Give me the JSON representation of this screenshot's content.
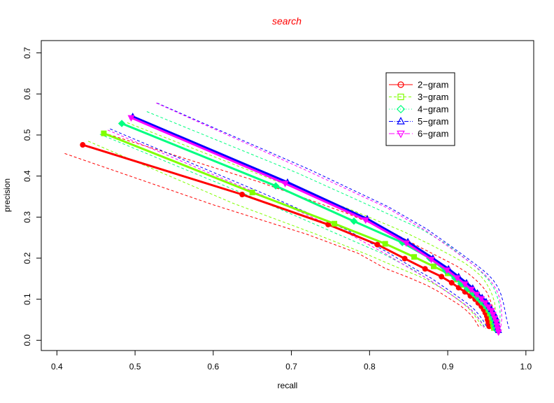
{
  "chart_data": {
    "type": "line",
    "title": "search",
    "title_color": "#ff0000",
    "xlabel": "recall",
    "ylabel": "precision",
    "xlim": [
      0.38,
      1.01
    ],
    "ylim": [
      -0.025,
      0.73
    ],
    "xticks": [
      "0.4",
      "0.5",
      "0.6",
      "0.7",
      "0.8",
      "0.9",
      "1.0"
    ],
    "yticks": [
      "0.0",
      "0.1",
      "0.2",
      "0.3",
      "0.4",
      "0.5",
      "0.6",
      "0.7"
    ],
    "legend_position": "top-right",
    "series": [
      {
        "name": "2−gram",
        "color": "#ff0000",
        "legend_marker": "circle",
        "points": [
          [
            0.433,
            0.476
          ],
          [
            0.637,
            0.355
          ],
          [
            0.747,
            0.282
          ],
          [
            0.81,
            0.233
          ],
          [
            0.845,
            0.199
          ],
          [
            0.871,
            0.174
          ],
          [
            0.892,
            0.155
          ],
          [
            0.905,
            0.14
          ],
          [
            0.914,
            0.128
          ],
          [
            0.922,
            0.118
          ],
          [
            0.929,
            0.108
          ],
          [
            0.935,
            0.1
          ],
          [
            0.939,
            0.091
          ],
          [
            0.943,
            0.083
          ],
          [
            0.946,
            0.075
          ],
          [
            0.948,
            0.067
          ],
          [
            0.95,
            0.059
          ],
          [
            0.951,
            0.05
          ],
          [
            0.952,
            0.042
          ],
          [
            0.953,
            0.034
          ]
        ],
        "upper": [
          [
            0.46,
            0.505
          ],
          [
            0.66,
            0.385
          ],
          [
            0.77,
            0.31
          ],
          [
            0.83,
            0.262
          ],
          [
            0.865,
            0.226
          ],
          [
            0.892,
            0.2
          ],
          [
            0.912,
            0.18
          ],
          [
            0.926,
            0.163
          ],
          [
            0.936,
            0.147
          ],
          [
            0.944,
            0.132
          ],
          [
            0.95,
            0.117
          ],
          [
            0.954,
            0.1
          ],
          [
            0.957,
            0.083
          ],
          [
            0.958,
            0.066
          ],
          [
            0.958,
            0.05
          ],
          [
            0.957,
            0.035
          ]
        ],
        "lower": [
          [
            0.41,
            0.455
          ],
          [
            0.6,
            0.33
          ],
          [
            0.72,
            0.258
          ],
          [
            0.785,
            0.212
          ],
          [
            0.82,
            0.175
          ],
          [
            0.85,
            0.153
          ],
          [
            0.872,
            0.135
          ],
          [
            0.886,
            0.121
          ],
          [
            0.897,
            0.108
          ],
          [
            0.906,
            0.097
          ],
          [
            0.915,
            0.086
          ],
          [
            0.923,
            0.074
          ],
          [
            0.93,
            0.061
          ],
          [
            0.935,
            0.048
          ],
          [
            0.939,
            0.035
          ],
          [
            0.941,
            0.03
          ]
        ]
      },
      {
        "name": "3−gram",
        "color": "#80ff00",
        "legend_marker": "square",
        "points": [
          [
            0.46,
            0.504
          ],
          [
            0.65,
            0.36
          ],
          [
            0.755,
            0.284
          ],
          [
            0.82,
            0.235
          ],
          [
            0.857,
            0.203
          ],
          [
            0.882,
            0.18
          ],
          [
            0.9,
            0.163
          ],
          [
            0.912,
            0.148
          ],
          [
            0.921,
            0.135
          ],
          [
            0.929,
            0.123
          ],
          [
            0.935,
            0.112
          ],
          [
            0.94,
            0.102
          ],
          [
            0.945,
            0.092
          ],
          [
            0.949,
            0.083
          ],
          [
            0.952,
            0.074
          ],
          [
            0.954,
            0.065
          ],
          [
            0.956,
            0.056
          ],
          [
            0.957,
            0.047
          ],
          [
            0.958,
            0.038
          ],
          [
            0.959,
            0.03
          ]
        ],
        "upper": [
          [
            0.49,
            0.53
          ],
          [
            0.675,
            0.392
          ],
          [
            0.78,
            0.315
          ],
          [
            0.843,
            0.265
          ],
          [
            0.879,
            0.232
          ],
          [
            0.903,
            0.208
          ],
          [
            0.92,
            0.19
          ],
          [
            0.932,
            0.174
          ],
          [
            0.941,
            0.159
          ],
          [
            0.948,
            0.143
          ],
          [
            0.953,
            0.127
          ],
          [
            0.957,
            0.11
          ],
          [
            0.96,
            0.092
          ],
          [
            0.961,
            0.074
          ],
          [
            0.961,
            0.056
          ],
          [
            0.96,
            0.04
          ]
        ],
        "lower": [
          [
            0.44,
            0.485
          ],
          [
            0.625,
            0.334
          ],
          [
            0.732,
            0.258
          ],
          [
            0.797,
            0.209
          ],
          [
            0.835,
            0.178
          ],
          [
            0.862,
            0.157
          ],
          [
            0.88,
            0.14
          ],
          [
            0.893,
            0.126
          ],
          [
            0.903,
            0.113
          ],
          [
            0.912,
            0.101
          ],
          [
            0.92,
            0.089
          ],
          [
            0.927,
            0.077
          ],
          [
            0.933,
            0.064
          ],
          [
            0.938,
            0.051
          ],
          [
            0.942,
            0.038
          ],
          [
            0.944,
            0.032
          ]
        ]
      },
      {
        "name": "4−gram",
        "color": "#00ff80",
        "legend_marker": "diamond",
        "points": [
          [
            0.483,
            0.528
          ],
          [
            0.68,
            0.376
          ],
          [
            0.78,
            0.29
          ],
          [
            0.842,
            0.238
          ],
          [
            0.877,
            0.2
          ],
          [
            0.897,
            0.17
          ],
          [
            0.909,
            0.152
          ],
          [
            0.917,
            0.138
          ],
          [
            0.925,
            0.126
          ],
          [
            0.932,
            0.115
          ],
          [
            0.938,
            0.104
          ],
          [
            0.943,
            0.094
          ],
          [
            0.948,
            0.085
          ],
          [
            0.952,
            0.076
          ],
          [
            0.955,
            0.067
          ],
          [
            0.957,
            0.058
          ],
          [
            0.959,
            0.049
          ],
          [
            0.96,
            0.04
          ],
          [
            0.961,
            0.032
          ],
          [
            0.962,
            0.026
          ]
        ],
        "upper": [
          [
            0.515,
            0.557
          ],
          [
            0.707,
            0.408
          ],
          [
            0.806,
            0.323
          ],
          [
            0.867,
            0.27
          ],
          [
            0.9,
            0.232
          ],
          [
            0.921,
            0.201
          ],
          [
            0.935,
            0.18
          ],
          [
            0.945,
            0.162
          ],
          [
            0.953,
            0.145
          ],
          [
            0.959,
            0.127
          ],
          [
            0.963,
            0.108
          ],
          [
            0.966,
            0.089
          ],
          [
            0.967,
            0.07
          ],
          [
            0.967,
            0.052
          ],
          [
            0.966,
            0.036
          ],
          [
            0.965,
            0.03
          ]
        ],
        "lower": [
          [
            0.455,
            0.502
          ],
          [
            0.652,
            0.347
          ],
          [
            0.755,
            0.262
          ],
          [
            0.818,
            0.21
          ],
          [
            0.854,
            0.174
          ],
          [
            0.876,
            0.147
          ],
          [
            0.89,
            0.13
          ],
          [
            0.9,
            0.117
          ],
          [
            0.909,
            0.105
          ],
          [
            0.917,
            0.094
          ],
          [
            0.925,
            0.083
          ],
          [
            0.932,
            0.071
          ],
          [
            0.938,
            0.058
          ],
          [
            0.943,
            0.045
          ],
          [
            0.947,
            0.033
          ],
          [
            0.949,
            0.028
          ]
        ]
      },
      {
        "name": "5−gram",
        "color": "#0000ff",
        "legend_marker": "triangle-up",
        "points": [
          [
            0.497,
            0.545
          ],
          [
            0.695,
            0.385
          ],
          [
            0.797,
            0.296
          ],
          [
            0.849,
            0.24
          ],
          [
            0.881,
            0.2
          ],
          [
            0.901,
            0.174
          ],
          [
            0.914,
            0.155
          ],
          [
            0.924,
            0.14
          ],
          [
            0.932,
            0.127
          ],
          [
            0.938,
            0.115
          ],
          [
            0.944,
            0.104
          ],
          [
            0.949,
            0.094
          ],
          [
            0.953,
            0.084
          ],
          [
            0.956,
            0.075
          ],
          [
            0.959,
            0.066
          ],
          [
            0.961,
            0.057
          ],
          [
            0.962,
            0.048
          ],
          [
            0.963,
            0.039
          ],
          [
            0.964,
            0.03
          ],
          [
            0.965,
            0.024
          ]
        ],
        "upper": [
          [
            0.528,
            0.578
          ],
          [
            0.723,
            0.416
          ],
          [
            0.823,
            0.326
          ],
          [
            0.874,
            0.27
          ],
          [
            0.905,
            0.228
          ],
          [
            0.925,
            0.2
          ],
          [
            0.939,
            0.18
          ],
          [
            0.95,
            0.163
          ],
          [
            0.958,
            0.147
          ],
          [
            0.964,
            0.13
          ],
          [
            0.968,
            0.112
          ],
          [
            0.971,
            0.093
          ],
          [
            0.973,
            0.074
          ],
          [
            0.975,
            0.055
          ],
          [
            0.977,
            0.038
          ],
          [
            0.979,
            0.025
          ]
        ],
        "lower": [
          [
            0.468,
            0.515
          ],
          [
            0.666,
            0.356
          ],
          [
            0.772,
            0.268
          ],
          [
            0.825,
            0.212
          ],
          [
            0.858,
            0.174
          ],
          [
            0.879,
            0.151
          ],
          [
            0.892,
            0.134
          ],
          [
            0.902,
            0.121
          ],
          [
            0.911,
            0.109
          ],
          [
            0.919,
            0.098
          ],
          [
            0.927,
            0.087
          ],
          [
            0.934,
            0.075
          ],
          [
            0.94,
            0.062
          ],
          [
            0.945,
            0.049
          ],
          [
            0.949,
            0.036
          ],
          [
            0.951,
            0.03
          ]
        ]
      },
      {
        "name": "6−gram",
        "color": "#ff00ff",
        "legend_marker": "triangle-down",
        "points": [
          [
            0.495,
            0.542
          ],
          [
            0.692,
            0.382
          ],
          [
            0.795,
            0.293
          ],
          [
            0.847,
            0.237
          ],
          [
            0.879,
            0.197
          ],
          [
            0.899,
            0.171
          ],
          [
            0.912,
            0.152
          ],
          [
            0.922,
            0.137
          ],
          [
            0.93,
            0.124
          ],
          [
            0.937,
            0.112
          ],
          [
            0.943,
            0.101
          ],
          [
            0.948,
            0.091
          ],
          [
            0.952,
            0.081
          ],
          [
            0.956,
            0.072
          ],
          [
            0.958,
            0.063
          ],
          [
            0.96,
            0.054
          ],
          [
            0.962,
            0.045
          ],
          [
            0.963,
            0.036
          ],
          [
            0.964,
            0.028
          ],
          [
            0.965,
            0.02
          ]
        ],
        "upper": [
          [
            0.527,
            0.578
          ],
          [
            0.72,
            0.413
          ],
          [
            0.822,
            0.323
          ],
          [
            0.873,
            0.266
          ],
          [
            0.904,
            0.224
          ],
          [
            0.924,
            0.196
          ],
          [
            0.938,
            0.176
          ],
          [
            0.948,
            0.159
          ],
          [
            0.956,
            0.142
          ],
          [
            0.962,
            0.124
          ],
          [
            0.966,
            0.105
          ],
          [
            0.968,
            0.086
          ],
          [
            0.969,
            0.067
          ],
          [
            0.969,
            0.05
          ],
          [
            0.968,
            0.035
          ],
          [
            0.967,
            0.028
          ]
        ],
        "lower": [
          [
            0.465,
            0.512
          ],
          [
            0.663,
            0.353
          ],
          [
            0.768,
            0.265
          ],
          [
            0.822,
            0.209
          ],
          [
            0.855,
            0.171
          ],
          [
            0.876,
            0.148
          ],
          [
            0.889,
            0.131
          ],
          [
            0.899,
            0.118
          ],
          [
            0.908,
            0.106
          ],
          [
            0.916,
            0.095
          ],
          [
            0.924,
            0.084
          ],
          [
            0.931,
            0.072
          ],
          [
            0.937,
            0.059
          ],
          [
            0.942,
            0.046
          ],
          [
            0.946,
            0.033
          ],
          [
            0.948,
            0.027
          ]
        ]
      }
    ]
  }
}
